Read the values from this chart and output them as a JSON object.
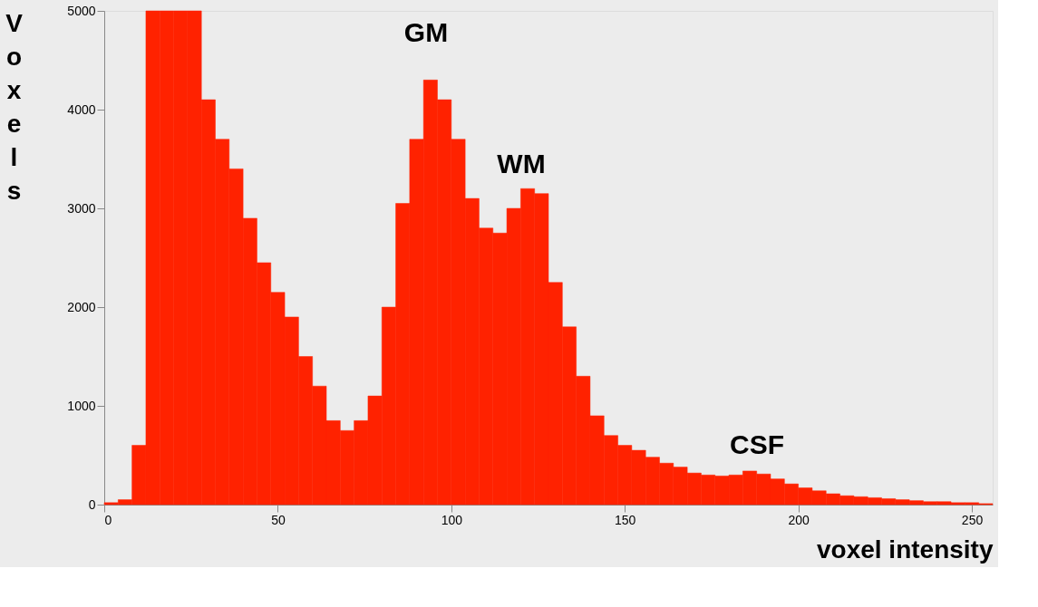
{
  "chart_data": {
    "type": "histogram",
    "xlabel": "voxel intensity",
    "ylabel": "Voxels",
    "bins": [
      0,
      4,
      8,
      12,
      16,
      20,
      24,
      28,
      32,
      36,
      40,
      44,
      48,
      52,
      56,
      60,
      64,
      68,
      72,
      76,
      80,
      84,
      88,
      92,
      96,
      100,
      104,
      108,
      112,
      116,
      120,
      124,
      128,
      132,
      136,
      140,
      144,
      148,
      152,
      156,
      160,
      164,
      168,
      172,
      176,
      180,
      184,
      188,
      192,
      196,
      200,
      204,
      208,
      212,
      216,
      220,
      224,
      228,
      232,
      236,
      240,
      244,
      248,
      252,
      256
    ],
    "values": [
      20,
      50,
      600,
      5000,
      5000,
      5000,
      5000,
      4100,
      3700,
      3400,
      2900,
      2450,
      2150,
      1900,
      1500,
      1200,
      850,
      750,
      850,
      1100,
      2000,
      3050,
      3700,
      4300,
      4100,
      3700,
      3100,
      2800,
      2750,
      3000,
      3200,
      3150,
      2250,
      1800,
      1300,
      900,
      700,
      600,
      550,
      480,
      420,
      380,
      320,
      300,
      290,
      300,
      340,
      310,
      260,
      210,
      170,
      140,
      110,
      90,
      80,
      70,
      60,
      50,
      40,
      30,
      30,
      20,
      20,
      10
    ],
    "color": "#ff2200",
    "xlim": [
      0,
      256
    ],
    "xticks": [
      0,
      50,
      100,
      150,
      200,
      250
    ],
    "ylim": [
      0,
      5000
    ],
    "yticks": [
      0,
      1000,
      2000,
      3000,
      4000,
      5000
    ],
    "grid": false,
    "annotations": [
      "GM",
      "WM",
      "CSF"
    ]
  }
}
